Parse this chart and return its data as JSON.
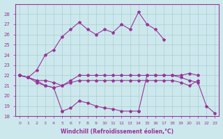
{
  "xlabel": "Windchill (Refroidissement éolien,°C)",
  "x_ticks": [
    0,
    1,
    2,
    3,
    4,
    5,
    6,
    7,
    8,
    9,
    10,
    11,
    12,
    13,
    14,
    15,
    16,
    17,
    18,
    19,
    20,
    21,
    22,
    23
  ],
  "ylim": [
    18,
    29
  ],
  "yticks": [
    18,
    19,
    20,
    21,
    22,
    23,
    24,
    25,
    26,
    27,
    28
  ],
  "background_color": "#cce8ec",
  "grid_color": "#aacdd3",
  "line_color": "#993399",
  "series": {
    "curve_high": {
      "x": [
        0,
        1,
        2,
        3,
        4,
        5,
        6,
        7,
        8,
        9,
        10,
        11,
        12,
        13,
        14,
        15,
        16,
        17
      ],
      "y": [
        22.0,
        21.8,
        22.5,
        24.0,
        24.5,
        25.8,
        26.5,
        27.2,
        26.5,
        26.0,
        26.5,
        26.2,
        27.0,
        26.5,
        28.2,
        27.0,
        26.5,
        25.5
      ]
    },
    "curve_mid_upper": {
      "x": [
        0,
        1,
        2,
        3,
        4,
        5,
        6,
        7,
        8,
        9,
        10,
        11,
        12,
        13,
        14,
        15,
        16,
        17,
        18,
        19,
        20,
        21
      ],
      "y": [
        22.0,
        21.8,
        21.5,
        21.5,
        21.3,
        21.0,
        21.5,
        22.0,
        22.0,
        22.0,
        22.0,
        22.0,
        22.0,
        22.0,
        22.0,
        22.0,
        22.0,
        22.0,
        22.0,
        22.0,
        22.2,
        22.0
      ]
    },
    "curve_mid_lower": {
      "x": [
        0,
        1,
        2,
        3,
        4,
        5,
        6,
        7,
        8,
        9,
        10,
        11,
        12,
        13,
        14,
        15,
        16,
        17,
        18,
        19,
        20,
        21
      ],
      "y": [
        22.0,
        21.8,
        21.3,
        21.0,
        20.8,
        21.0,
        21.3,
        21.5,
        21.5,
        21.5,
        21.5,
        21.5,
        21.5,
        21.5,
        21.5,
        21.5,
        21.5,
        21.5,
        21.5,
        21.3,
        21.0,
        21.5
      ]
    },
    "curve_decline": {
      "x": [
        0,
        1,
        2,
        3,
        4,
        5,
        6,
        7,
        8,
        9,
        10,
        11,
        12,
        13,
        14,
        15,
        16,
        17,
        18,
        19,
        20,
        21,
        22,
        23
      ],
      "y": [
        22.0,
        21.8,
        21.5,
        21.0,
        20.8,
        18.5,
        18.8,
        19.5,
        19.3,
        19.0,
        18.8,
        18.7,
        18.5,
        18.5,
        18.5,
        22.0,
        22.0,
        22.0,
        22.0,
        21.8,
        21.5,
        21.3,
        19.0,
        18.3
      ]
    }
  }
}
